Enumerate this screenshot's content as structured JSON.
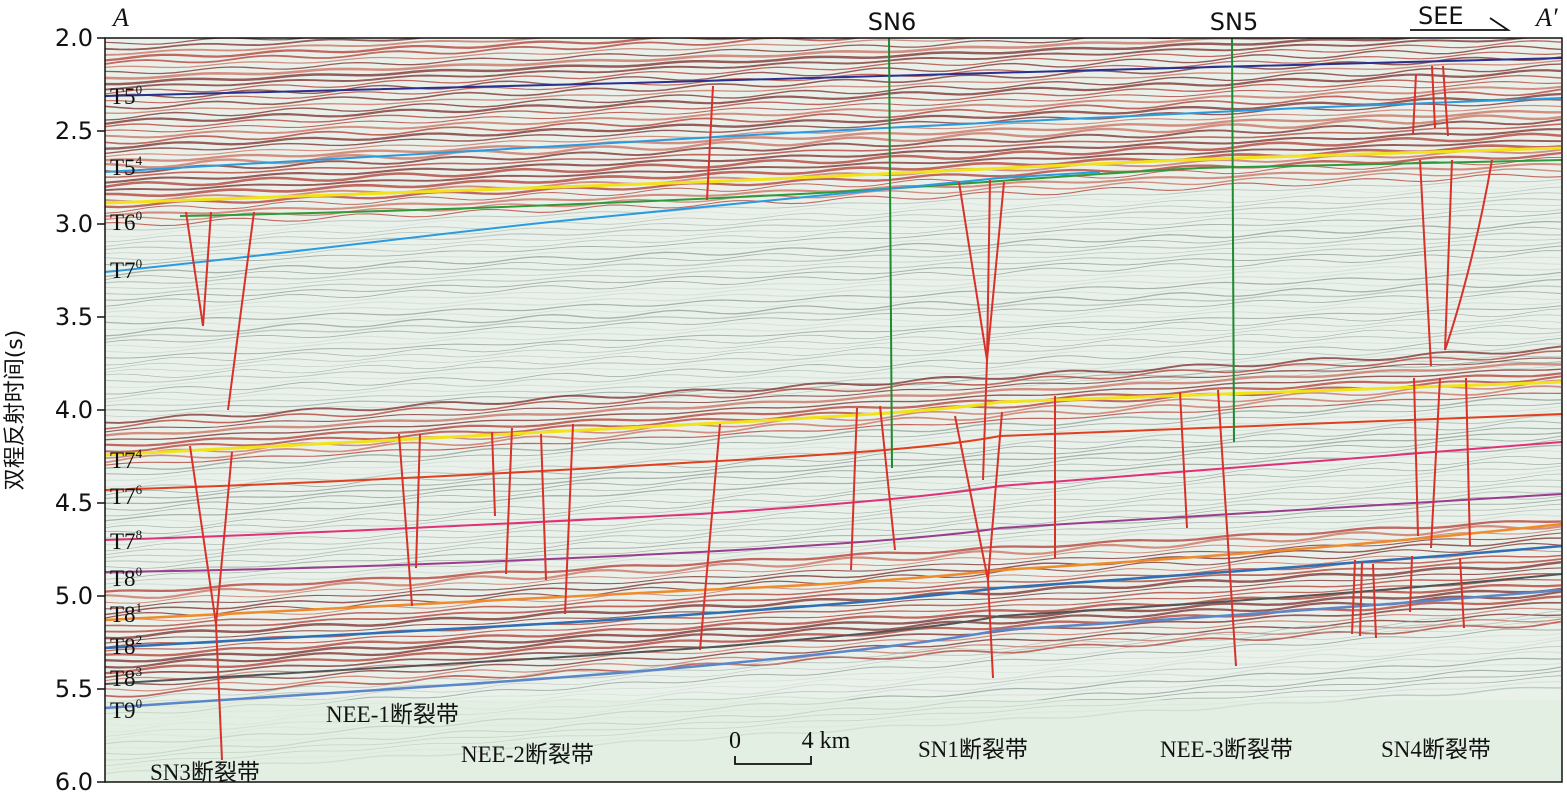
{
  "section": {
    "left_label": "A",
    "right_label": "A′",
    "direction_label": "SEE",
    "y_axis_label": "双程反射时间(s)",
    "y_ticks": [
      "2.0",
      "2.5",
      "3.0",
      "3.5",
      "4.0",
      "4.5",
      "5.0",
      "5.5",
      "6.0"
    ],
    "y_range": [
      2.0,
      6.0
    ],
    "wells": [
      {
        "name": "SN6"
      },
      {
        "name": "SN5"
      }
    ],
    "horizons": [
      {
        "label": "T5",
        "sup": "0"
      },
      {
        "label": "T5",
        "sup": "4"
      },
      {
        "label": "T6",
        "sup": "0"
      },
      {
        "label": "T7",
        "sup": "0"
      },
      {
        "label": "T7",
        "sup": "4"
      },
      {
        "label": "T7",
        "sup": "6"
      },
      {
        "label": "T7",
        "sup": "8"
      },
      {
        "label": "T8",
        "sup": "0"
      },
      {
        "label": "T8",
        "sup": "1"
      },
      {
        "label": "T8",
        "sup": "2"
      },
      {
        "label": "T8",
        "sup": "3"
      },
      {
        "label": "T9",
        "sup": "0"
      }
    ],
    "fault_zones": [
      "SN3断裂带",
      "NEE-1断裂带",
      "NEE-2断裂带",
      "SN1断裂带",
      "NEE-3断裂带",
      "SN4断裂带"
    ],
    "scale_bar": {
      "start": "0",
      "end": "4 km"
    },
    "colors": {
      "fault": "#d8312a",
      "well": "#1c8a2e",
      "T5_0": "#2b2f8f",
      "T5_4": "#2a9be0",
      "T6_0_yellow": "#f2e21b",
      "T6_0_green": "#2e9b3a",
      "T7_0": "#2a9be0",
      "T7_4": "#f2e21b",
      "T7_6": "#e0401e",
      "T7_8": "#e0307a",
      "T8_0": "#9a3d8e",
      "T8_1": "#f08a2a",
      "T8_2": "#2f6fb5",
      "T8_3": "#555555",
      "T9_0": "#5b86c9"
    }
  }
}
